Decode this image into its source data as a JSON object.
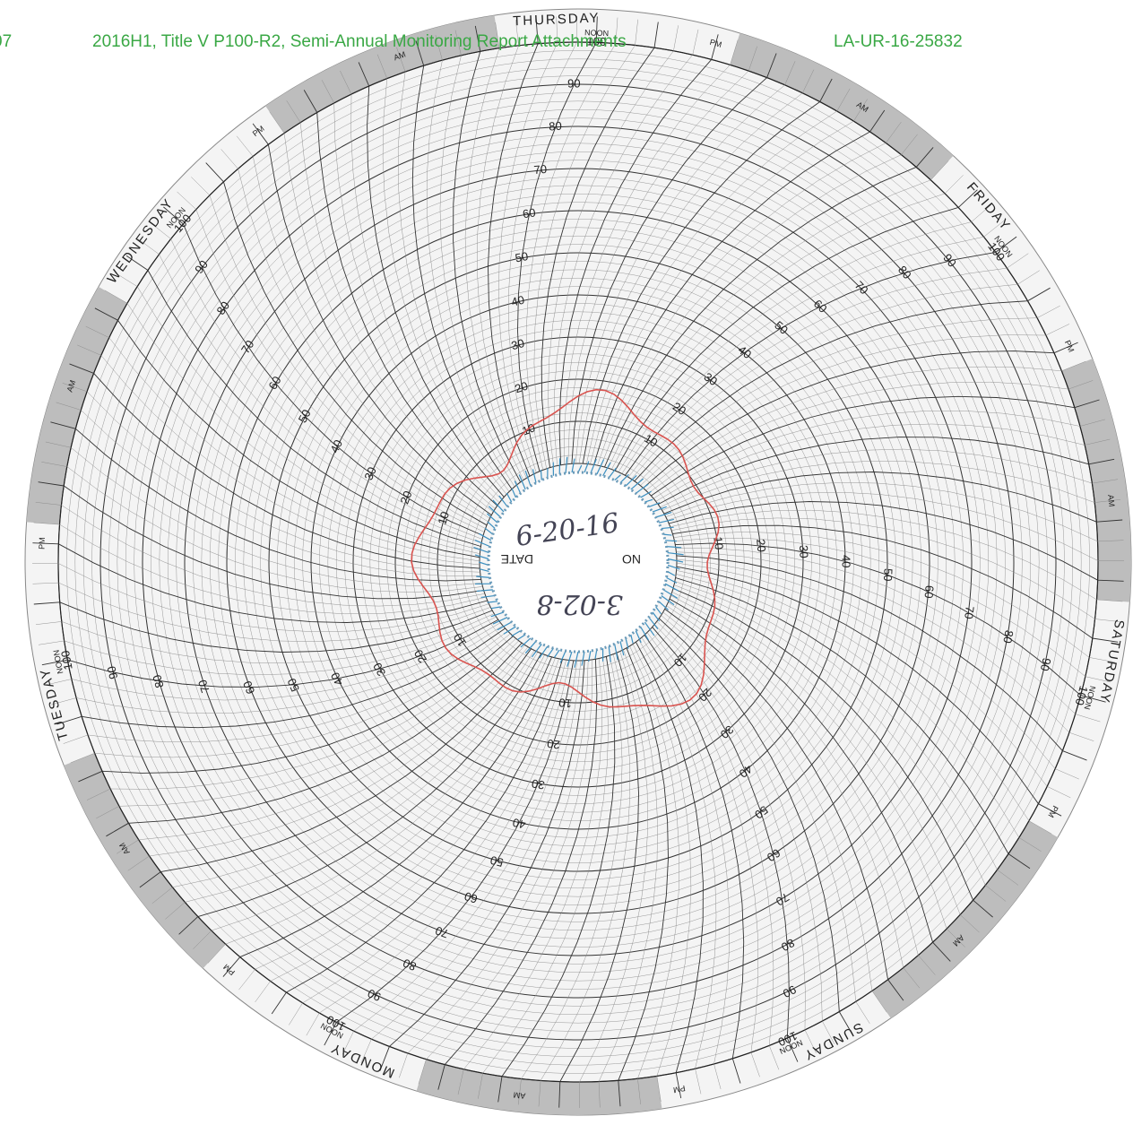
{
  "header": {
    "page": "07",
    "title": "2016H1, Title V P100-R2, Semi-Annual Monitoring Report Attachments",
    "report_id": "LA-UR-16-25832"
  },
  "chart_paper": {
    "days": [
      "THURSDAY",
      "FRIDAY",
      "SATURDAY",
      "SUNDAY",
      "MONDAY",
      "TUESDAY",
      "WEDNESDAY"
    ],
    "noon": "NOON",
    "am": "AM",
    "pm": "PM",
    "scale": [
      10,
      20,
      30,
      40,
      50,
      60,
      70,
      80,
      90,
      100
    ],
    "center": {
      "no": "NO",
      "date": "DATE",
      "handwritten_date": "6-20-16",
      "handwritten_note": "3-02-8"
    }
  }
}
